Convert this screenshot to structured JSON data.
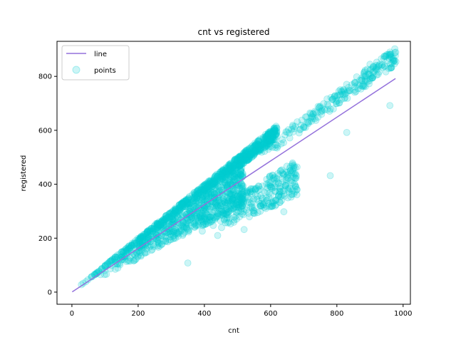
{
  "chart_data": {
    "type": "scatter",
    "title": "cnt vs registered",
    "xlabel": "cnt",
    "ylabel": "registered",
    "xlim": [
      -45,
      1022
    ],
    "ylim": [
      -45,
      930
    ],
    "x_ticks": [
      0,
      200,
      400,
      600,
      800,
      1000
    ],
    "y_ticks": [
      0,
      200,
      400,
      600,
      800
    ],
    "grid": false,
    "legend_position": "top-left",
    "series": [
      {
        "name": "line",
        "kind": "line",
        "color": "#9370DB",
        "points": [
          [
            1,
            0.81
          ],
          [
            977,
            792
          ]
        ]
      },
      {
        "name": "points",
        "kind": "scatter",
        "color": "#00CED1",
        "alpha": 0.2,
        "bands": [
          {
            "x": [
              1,
              620
            ],
            "slope_low": 0.92,
            "slope_high": 1.0,
            "count": 900
          },
          {
            "x": [
              80,
              520
            ],
            "slope_low": 0.62,
            "slope_high": 0.9,
            "count": 650
          },
          {
            "x": [
              380,
              680
            ],
            "slope_low": 0.52,
            "slope_high": 0.72,
            "count": 260
          },
          {
            "x": [
              550,
              980
            ],
            "slope_low": 0.86,
            "slope_high": 0.93,
            "count": 220
          }
        ],
        "outliers": [
          [
            350,
            108
          ],
          [
            960,
            692
          ],
          [
            830,
            592
          ],
          [
            780,
            432
          ],
          [
            640,
            298
          ],
          [
            520,
            232
          ],
          [
            440,
            210
          ],
          [
            960,
            890
          ],
          [
            975,
            888
          ],
          [
            900,
            845
          ]
        ]
      }
    ]
  }
}
